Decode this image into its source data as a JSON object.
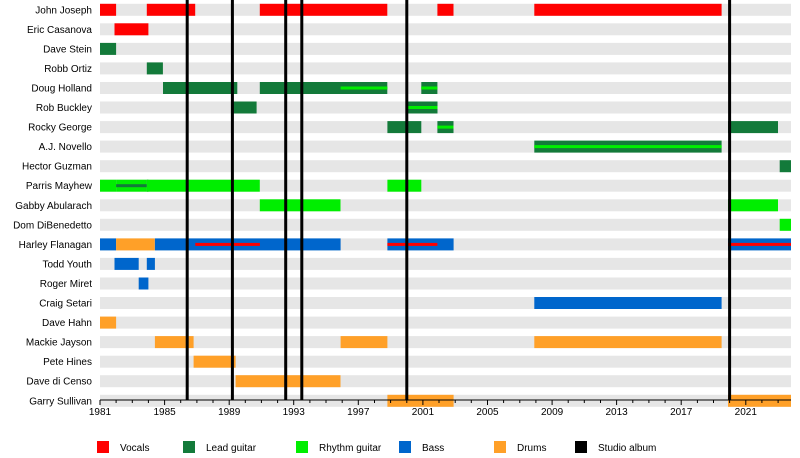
{
  "chart_data": {
    "type": "timeline",
    "title": "",
    "xlabel": "",
    "ylabel": "",
    "xlim": [
      1981,
      2023.8
    ],
    "xticks": [
      1981,
      1985,
      1989,
      1993,
      1997,
      2001,
      2005,
      2009,
      2013,
      2017,
      2021
    ],
    "grid": true,
    "legend_position": "bottom",
    "roles": [
      {
        "key": "vocals",
        "label": "Vocals",
        "color": "#ff0000"
      },
      {
        "key": "lead",
        "label": "Lead guitar",
        "color": "#137a3a"
      },
      {
        "key": "rhythm",
        "label": "Rhythm guitar",
        "color": "#00ee00"
      },
      {
        "key": "bass",
        "label": "Bass",
        "color": "#0066cc"
      },
      {
        "key": "drums",
        "label": "Drums",
        "color": "#ffa028"
      },
      {
        "key": "album",
        "label": "Studio album",
        "color": "#000000"
      }
    ],
    "studio_albums": [
      1986.4,
      1989.2,
      1992.5,
      1993.5,
      2000.0,
      2020.0
    ],
    "members": [
      {
        "name": "John Joseph",
        "spans": [
          {
            "role": "vocals",
            "start": 1981.0,
            "end": 1982.0
          },
          {
            "role": "vocals",
            "start": 1983.9,
            "end": 1986.9
          },
          {
            "role": "vocals",
            "start": 1990.9,
            "end": 1998.8
          },
          {
            "role": "vocals",
            "start": 2001.9,
            "end": 2002.9
          },
          {
            "role": "vocals",
            "start": 2007.9,
            "end": 2019.5
          }
        ]
      },
      {
        "name": "Eric Casanova",
        "spans": [
          {
            "role": "vocals",
            "start": 1981.9,
            "end": 1984.0
          }
        ]
      },
      {
        "name": "Dave Stein",
        "spans": [
          {
            "role": "lead",
            "start": 1981.0,
            "end": 1982.0
          }
        ]
      },
      {
        "name": "Robb Ortiz",
        "spans": [
          {
            "role": "lead",
            "start": 1983.9,
            "end": 1984.9
          }
        ]
      },
      {
        "name": "Doug Holland",
        "spans": [
          {
            "role": "lead",
            "start": 1984.9,
            "end": 1989.5
          },
          {
            "role": "lead",
            "start": 1990.9,
            "end": 1998.8,
            "inner": "rhythm",
            "inner_start": 1995.9,
            "inner_end": 1998.8
          },
          {
            "role": "lead",
            "start": 2000.9,
            "end": 2001.9,
            "inner": "rhythm"
          }
        ]
      },
      {
        "name": "Rob Buckley",
        "spans": [
          {
            "role": "lead",
            "start": 1989.2,
            "end": 1990.7
          },
          {
            "role": "lead",
            "start": 2000.0,
            "end": 2001.9,
            "inner": "rhythm"
          }
        ]
      },
      {
        "name": "Rocky George",
        "spans": [
          {
            "role": "lead",
            "start": 1998.8,
            "end": 2000.9
          },
          {
            "role": "lead",
            "start": 2001.9,
            "end": 2002.9,
            "inner": "rhythm"
          },
          {
            "role": "lead",
            "start": 2019.9,
            "end": 2023.0
          }
        ]
      },
      {
        "name": "A.J. Novello",
        "spans": [
          {
            "role": "lead",
            "start": 2007.9,
            "end": 2019.5,
            "inner": "rhythm"
          }
        ]
      },
      {
        "name": "Hector Guzman",
        "spans": [
          {
            "role": "lead",
            "start": 2023.1,
            "end": 2023.8
          }
        ]
      },
      {
        "name": "Parris Mayhew",
        "spans": [
          {
            "role": "rhythm",
            "start": 1981.0,
            "end": 1982.0
          },
          {
            "role": "rhythm",
            "start": 1982.0,
            "end": 1983.9,
            "inner": "lead"
          },
          {
            "role": "lead",
            "start": 1983.9,
            "end": 1984.0
          },
          {
            "role": "rhythm",
            "start": 1983.9,
            "end": 1990.9
          },
          {
            "role": "rhythm",
            "start": 1998.8,
            "end": 2000.9
          }
        ]
      },
      {
        "name": "Gabby Abularach",
        "spans": [
          {
            "role": "rhythm",
            "start": 1990.9,
            "end": 1995.9
          },
          {
            "role": "rhythm",
            "start": 2019.9,
            "end": 2023.0
          }
        ]
      },
      {
        "name": "Dom DiBenedetto",
        "spans": [
          {
            "role": "rhythm",
            "start": 2023.1,
            "end": 2023.8
          }
        ]
      },
      {
        "name": "Harley Flanagan",
        "spans": [
          {
            "role": "bass",
            "start": 1981.0,
            "end": 1982.0
          },
          {
            "role": "drums",
            "start": 1982.0,
            "end": 1984.4
          },
          {
            "role": "bass",
            "start": 1984.4,
            "end": 1995.9,
            "inner": "vocals",
            "inner_start": 1986.9,
            "inner_end": 1990.9
          },
          {
            "role": "bass",
            "start": 1998.8,
            "end": 2002.9,
            "inner": "vocals",
            "inner_start": 1998.8,
            "inner_end": 2001.9
          },
          {
            "role": "bass",
            "start": 2019.9,
            "end": 2023.8,
            "inner": "vocals"
          }
        ]
      },
      {
        "name": "Todd Youth",
        "spans": [
          {
            "role": "bass",
            "start": 1981.9,
            "end": 1983.4
          },
          {
            "role": "bass",
            "start": 1983.9,
            "end": 1984.4
          }
        ]
      },
      {
        "name": "Roger Miret",
        "spans": [
          {
            "role": "bass",
            "start": 1983.4,
            "end": 1984.0
          }
        ]
      },
      {
        "name": "Craig Setari",
        "spans": [
          {
            "role": "bass",
            "start": 2007.9,
            "end": 2019.5
          }
        ]
      },
      {
        "name": "Dave Hahn",
        "spans": [
          {
            "role": "drums",
            "start": 1981.0,
            "end": 1982.0
          }
        ]
      },
      {
        "name": "Mackie Jayson",
        "spans": [
          {
            "role": "drums",
            "start": 1984.4,
            "end": 1986.8
          },
          {
            "role": "drums",
            "start": 1995.9,
            "end": 1998.8
          },
          {
            "role": "drums",
            "start": 2007.9,
            "end": 2019.5
          }
        ]
      },
      {
        "name": "Pete Hines",
        "spans": [
          {
            "role": "drums",
            "start": 1986.8,
            "end": 1989.4
          }
        ]
      },
      {
        "name": "Dave di Censo",
        "spans": [
          {
            "role": "drums",
            "start": 1989.4,
            "end": 1995.9
          }
        ]
      },
      {
        "name": "Garry Sullivan",
        "spans": [
          {
            "role": "drums",
            "start": 1998.8,
            "end": 2002.9
          },
          {
            "role": "drums",
            "start": 2019.9,
            "end": 2023.8
          }
        ]
      }
    ]
  }
}
